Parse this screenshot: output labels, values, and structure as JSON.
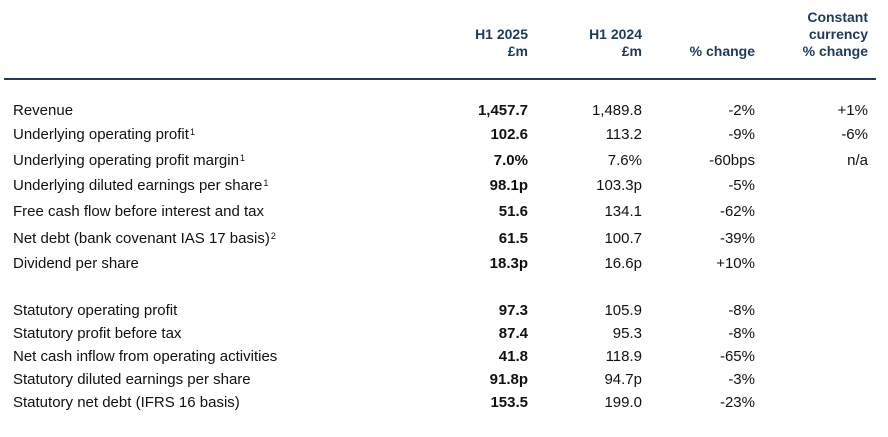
{
  "header": {
    "col_h1_2025": [
      "H1 2025",
      "£m"
    ],
    "col_h1_2024": [
      "H1 2024",
      "£m"
    ],
    "col_pct_change": [
      "% change"
    ],
    "col_cc_change": [
      "Constant",
      "currency",
      "% change"
    ]
  },
  "rows": [
    {
      "label": "Revenue",
      "sup": "",
      "h1_2025": "1,457.7",
      "h1_2024": "1,489.8",
      "pct_change": "-2%",
      "cc_change": "+1%"
    },
    {
      "label": "Underlying operating profit",
      "sup": "1",
      "h1_2025": "102.6",
      "h1_2024": "113.2",
      "pct_change": "-9%",
      "cc_change": "-6%"
    },
    {
      "label": "Underlying operating profit margin",
      "sup": "1",
      "h1_2025": "7.0%",
      "h1_2024": "7.6%",
      "pct_change": "-60bps",
      "cc_change": "n/a"
    },
    {
      "label": "Underlying diluted earnings per share",
      "sup": "1",
      "h1_2025": "98.1p",
      "h1_2024": "103.3p",
      "pct_change": "-5%",
      "cc_change": ""
    },
    {
      "label": "Free cash flow before interest and tax",
      "sup": "",
      "h1_2025": "51.6",
      "h1_2024": "134.1",
      "pct_change": "-62%",
      "cc_change": ""
    },
    {
      "label": "Net debt (bank covenant IAS 17 basis)",
      "sup": "2",
      "h1_2025": "61.5",
      "h1_2024": "100.7",
      "pct_change": "-39%",
      "cc_change": ""
    },
    {
      "label": "Dividend per share",
      "sup": "",
      "h1_2025": "18.3p",
      "h1_2024": "16.6p",
      "pct_change": "+10%",
      "cc_change": ""
    },
    {
      "label": "Statutory operating profit",
      "sup": "",
      "h1_2025": "97.3",
      "h1_2024": "105.9",
      "pct_change": "-8%",
      "cc_change": ""
    },
    {
      "label": "Statutory profit before tax",
      "sup": "",
      "h1_2025": "87.4",
      "h1_2024": "95.3",
      "pct_change": "-8%",
      "cc_change": ""
    },
    {
      "label": "Net cash inflow from operating activities",
      "sup": "",
      "h1_2025": "41.8",
      "h1_2024": "118.9",
      "pct_change": "-65%",
      "cc_change": ""
    },
    {
      "label": "Statutory diluted earnings per share",
      "sup": "",
      "h1_2025": "91.8p",
      "h1_2024": "94.7p",
      "pct_change": "-3%",
      "cc_change": ""
    },
    {
      "label": "Statutory net debt (IFRS 16 basis)",
      "sup": "",
      "h1_2025": "153.5",
      "h1_2024": "199.0",
      "pct_change": "-23%",
      "cc_change": ""
    }
  ],
  "colors": {
    "header_text": "#1f3a5c",
    "rule": "#1f3a5c",
    "body_text": "#111111"
  }
}
